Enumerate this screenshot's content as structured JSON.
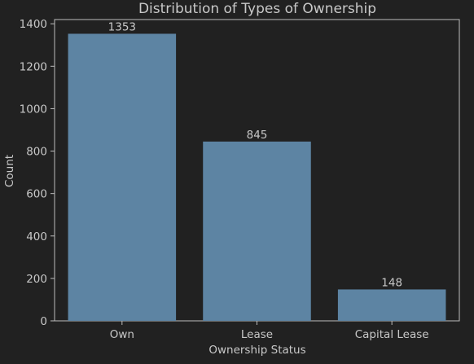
{
  "chart_data": {
    "type": "bar",
    "title": "Distribution of Types of Ownership",
    "xlabel": "Ownership Status",
    "ylabel": "Count",
    "categories": [
      "Own",
      "Lease",
      "Capital Lease"
    ],
    "values": [
      1353,
      845,
      148
    ],
    "data_labels": [
      "1353",
      "845",
      "148"
    ],
    "ylim": [
      0,
      1420
    ],
    "yticks": [
      0,
      200,
      400,
      600,
      800,
      1000,
      1200,
      1400
    ],
    "grid": false,
    "bar_color": "#5d84a3",
    "background_color": "#212121",
    "text_color": "#c8c8c8"
  }
}
